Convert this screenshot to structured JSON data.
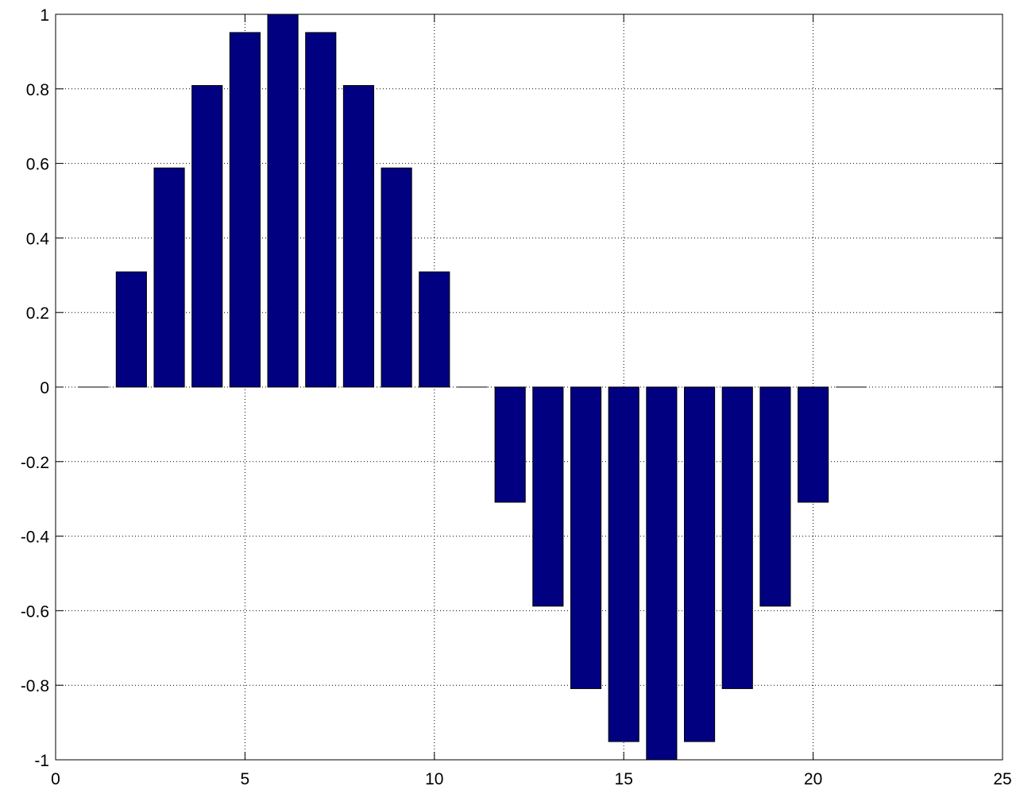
{
  "chart_data": {
    "type": "bar",
    "x": [
      1,
      2,
      3,
      4,
      5,
      6,
      7,
      8,
      9,
      10,
      11,
      12,
      13,
      14,
      15,
      16,
      17,
      18,
      19,
      20,
      21
    ],
    "values": [
      0,
      0.309,
      0.5878,
      0.809,
      0.9511,
      1,
      0.9511,
      0.809,
      0.5878,
      0.309,
      0,
      -0.309,
      -0.5878,
      -0.809,
      -0.9511,
      -1,
      -0.9511,
      -0.809,
      -0.5878,
      -0.309,
      0
    ],
    "xlim": [
      0,
      25
    ],
    "ylim": [
      -1,
      1
    ],
    "xticks": [
      0,
      5,
      10,
      15,
      20,
      25
    ],
    "yticks": [
      -1,
      -0.8,
      -0.6,
      -0.4,
      -0.2,
      0,
      0.2,
      0.4,
      0.6,
      0.8,
      1
    ],
    "xtick_labels": [
      "0",
      "5",
      "10",
      "15",
      "20",
      "25"
    ],
    "ytick_labels": [
      "-1",
      "-0.8",
      "-0.6",
      "-0.4",
      "-0.2",
      "0",
      "0.2",
      "0.4",
      "0.6",
      "0.8",
      "1"
    ],
    "bar_width": 0.8,
    "bar_color": "#000080",
    "grid": true,
    "title": "",
    "xlabel": "",
    "ylabel": ""
  }
}
